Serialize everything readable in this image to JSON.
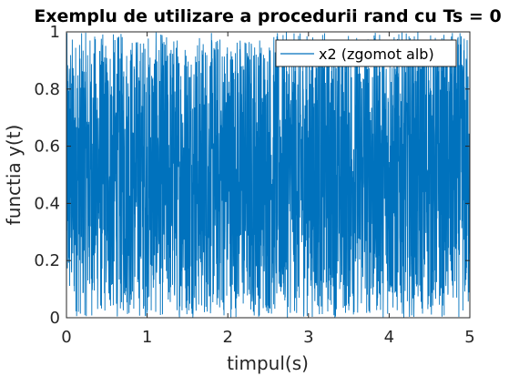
{
  "chart_data": {
    "type": "line",
    "title": "Exemplu de utilizare a procedurii rand cu Ts = 0",
    "xlabel": "timpul(s)",
    "ylabel": "functia y(t)",
    "xlim": [
      0,
      5
    ],
    "ylim": [
      0,
      1
    ],
    "xticks": [
      "0",
      "1",
      "2",
      "3",
      "4",
      "5"
    ],
    "yticks": [
      "0",
      "0.2",
      "0.4",
      "0.6",
      "0.8",
      "1"
    ],
    "grid": false,
    "legend": {
      "position": "top-right"
    },
    "series": [
      {
        "name": "x2 (zgomot alb)",
        "color": "#0072BD",
        "description_of_values": "uniform random noise in [0,1] sampled densely over t in [0,5]",
        "x_range": [
          0,
          5
        ],
        "value_range": [
          0,
          1
        ]
      }
    ]
  }
}
